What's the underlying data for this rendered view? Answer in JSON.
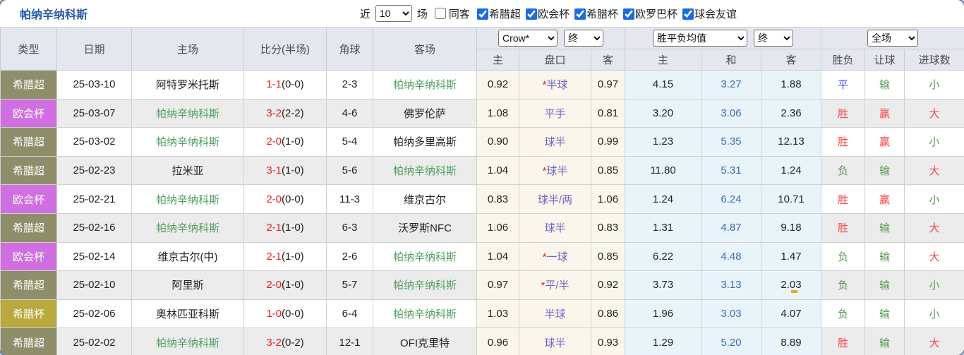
{
  "title": "帕纳辛纳科斯",
  "focus_team": "帕纳辛纳科斯",
  "controls": {
    "recent_label": "近",
    "recent_value": "10",
    "matches_label": "场",
    "same_venue_label": "同客",
    "same_venue_checked": false,
    "leagues": [
      {
        "label": "希腊超",
        "checked": true
      },
      {
        "label": "欧会杯",
        "checked": true
      },
      {
        "label": "希腊杯",
        "checked": true
      },
      {
        "label": "欧罗巴杯",
        "checked": true
      },
      {
        "label": "球会友谊",
        "checked": true
      }
    ]
  },
  "header": {
    "col_type": "类型",
    "col_date": "日期",
    "col_home": "主场",
    "col_score": "比分(半场)",
    "col_corner": "角球",
    "col_away": "客场",
    "odds_source_select": "Crow*",
    "odds_time_select": "终",
    "avg_select": "胜平负均值",
    "avg_time_select": "终",
    "scope_select": "全场",
    "sub": {
      "home": "主",
      "handicap": "盘口",
      "away": "客",
      "avg_home": "主",
      "avg_draw": "和",
      "avg_away": "客",
      "result": "胜负",
      "handicap_result": "让球",
      "goals": "进球数"
    }
  },
  "colors": {
    "title": "#2b5aa6",
    "focus_team": "#4e9e5e",
    "score_red": "#ee1c1c",
    "handicap_text": "#6966cc",
    "draw_blue": "#3a6cb5",
    "type_badges": {
      "希腊超": "#8e8e6a",
      "欧会杯": "#d06fdf",
      "希腊杯": "#b9a93e"
    },
    "outcome": {
      "胜": "#f84444",
      "赢": "#f84444",
      "大": "#f84444",
      "负": "#55984f",
      "输": "#55984f",
      "小": "#55984f",
      "平": "#3f3ff0"
    }
  },
  "rows": [
    {
      "type": "希腊超",
      "date": "25-03-10",
      "home": "阿特罗米托斯",
      "ft": "1-1",
      "ht": "0-0",
      "corner": "2-3",
      "away": "帕纳辛纳科斯",
      "oh": "0.92",
      "hstar": true,
      "hcap": "半球",
      "oa": "0.97",
      "ah": "4.15",
      "ad": "3.27",
      "aa": "1.88",
      "res": "平",
      "hres": "输",
      "goal": "小",
      "mark": false
    },
    {
      "type": "欧会杯",
      "date": "25-03-07",
      "home": "帕纳辛纳科斯",
      "ft": "3-2",
      "ht": "2-2",
      "corner": "4-6",
      "away": "佛罗伦萨",
      "oh": "1.08",
      "hstar": false,
      "hcap": "平手",
      "oa": "0.81",
      "ah": "3.20",
      "ad": "3.06",
      "aa": "2.36",
      "res": "胜",
      "hres": "赢",
      "goal": "大",
      "mark": false
    },
    {
      "type": "希腊超",
      "date": "25-03-02",
      "home": "帕纳辛纳科斯",
      "ft": "2-0",
      "ht": "1-0",
      "corner": "5-4",
      "away": "帕纳多里高斯",
      "oh": "0.90",
      "hstar": false,
      "hcap": "球半",
      "oa": "0.99",
      "ah": "1.23",
      "ad": "5.35",
      "aa": "12.13",
      "res": "胜",
      "hres": "赢",
      "goal": "小",
      "mark": false
    },
    {
      "type": "希腊超",
      "date": "25-02-23",
      "home": "拉米亚",
      "ft": "3-1",
      "ht": "1-0",
      "corner": "5-6",
      "away": "帕纳辛纳科斯",
      "oh": "1.04",
      "hstar": true,
      "hcap": "球半",
      "oa": "0.85",
      "ah": "11.80",
      "ad": "5.31",
      "aa": "1.24",
      "res": "负",
      "hres": "输",
      "goal": "大",
      "mark": false
    },
    {
      "type": "欧会杯",
      "date": "25-02-21",
      "home": "帕纳辛纳科斯",
      "ft": "2-0",
      "ht": "0-0",
      "corner": "11-3",
      "away": "维京古尔",
      "oh": "0.83",
      "hstar": false,
      "hcap": "球半/两",
      "oa": "1.06",
      "ah": "1.24",
      "ad": "6.24",
      "aa": "10.71",
      "res": "胜",
      "hres": "赢",
      "goal": "小",
      "mark": false
    },
    {
      "type": "希腊超",
      "date": "25-02-16",
      "home": "帕纳辛纳科斯",
      "ft": "2-1",
      "ht": "1-0",
      "corner": "6-3",
      "away": "沃罗斯NFC",
      "oh": "1.06",
      "hstar": false,
      "hcap": "球半",
      "oa": "0.83",
      "ah": "1.31",
      "ad": "4.87",
      "aa": "9.18",
      "res": "胜",
      "hres": "输",
      "goal": "大",
      "mark": false
    },
    {
      "type": "欧会杯",
      "date": "25-02-14",
      "home": "维京古尔(中)",
      "ft": "2-1",
      "ht": "1-0",
      "corner": "2-6",
      "away": "帕纳辛纳科斯",
      "oh": "1.04",
      "hstar": true,
      "hcap": "一球",
      "oa": "0.85",
      "ah": "6.22",
      "ad": "4.48",
      "aa": "1.47",
      "res": "负",
      "hres": "输",
      "goal": "大",
      "mark": false
    },
    {
      "type": "希腊超",
      "date": "25-02-10",
      "home": "阿里斯",
      "ft": "2-0",
      "ht": "1-0",
      "corner": "5-7",
      "away": "帕纳辛纳科斯",
      "oh": "0.97",
      "hstar": true,
      "hcap": "平/半",
      "oa": "0.92",
      "ah": "3.73",
      "ad": "3.13",
      "aa": "2.03",
      "res": "负",
      "hres": "输",
      "goal": "小",
      "mark": true
    },
    {
      "type": "希腊杯",
      "date": "25-02-06",
      "home": "奥林匹亚科斯",
      "ft": "1-0",
      "ht": "0-0",
      "corner": "6-4",
      "away": "帕纳辛纳科斯",
      "oh": "1.03",
      "hstar": false,
      "hcap": "半球",
      "oa": "0.86",
      "ah": "1.96",
      "ad": "3.03",
      "aa": "4.07",
      "res": "负",
      "hres": "输",
      "goal": "小",
      "mark": false
    },
    {
      "type": "希腊超",
      "date": "25-02-02",
      "home": "帕纳辛纳科斯",
      "ft": "3-2",
      "ht": "0-2",
      "corner": "12-1",
      "away": "OFI克里特",
      "oh": "0.96",
      "hstar": false,
      "hcap": "球半",
      "oa": "0.93",
      "ah": "1.29",
      "ad": "5.20",
      "aa": "8.89",
      "res": "胜",
      "hres": "输",
      "goal": "大",
      "mark": false
    }
  ]
}
